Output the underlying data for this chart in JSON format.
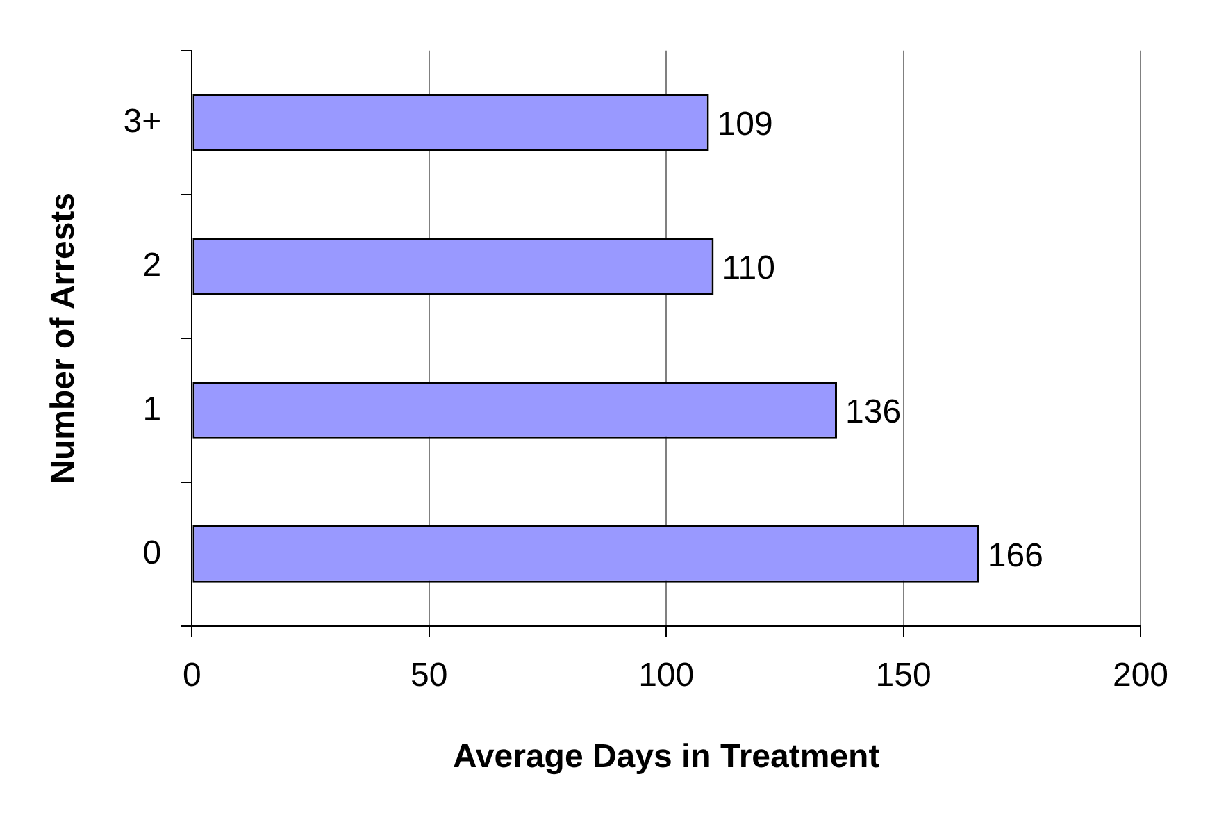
{
  "chart_data": {
    "type": "bar",
    "orientation": "horizontal",
    "categories": [
      "3+",
      "2",
      "1",
      "0"
    ],
    "values": [
      109,
      110,
      136,
      166
    ],
    "color": "#9999ff",
    "xlabel": "Average Days in Treatment",
    "ylabel": "Number of Arrests",
    "xlim": [
      0,
      200
    ],
    "xticks": [
      0,
      50,
      100,
      150,
      200
    ],
    "grid": "x",
    "data_labels": true,
    "legend": false
  }
}
